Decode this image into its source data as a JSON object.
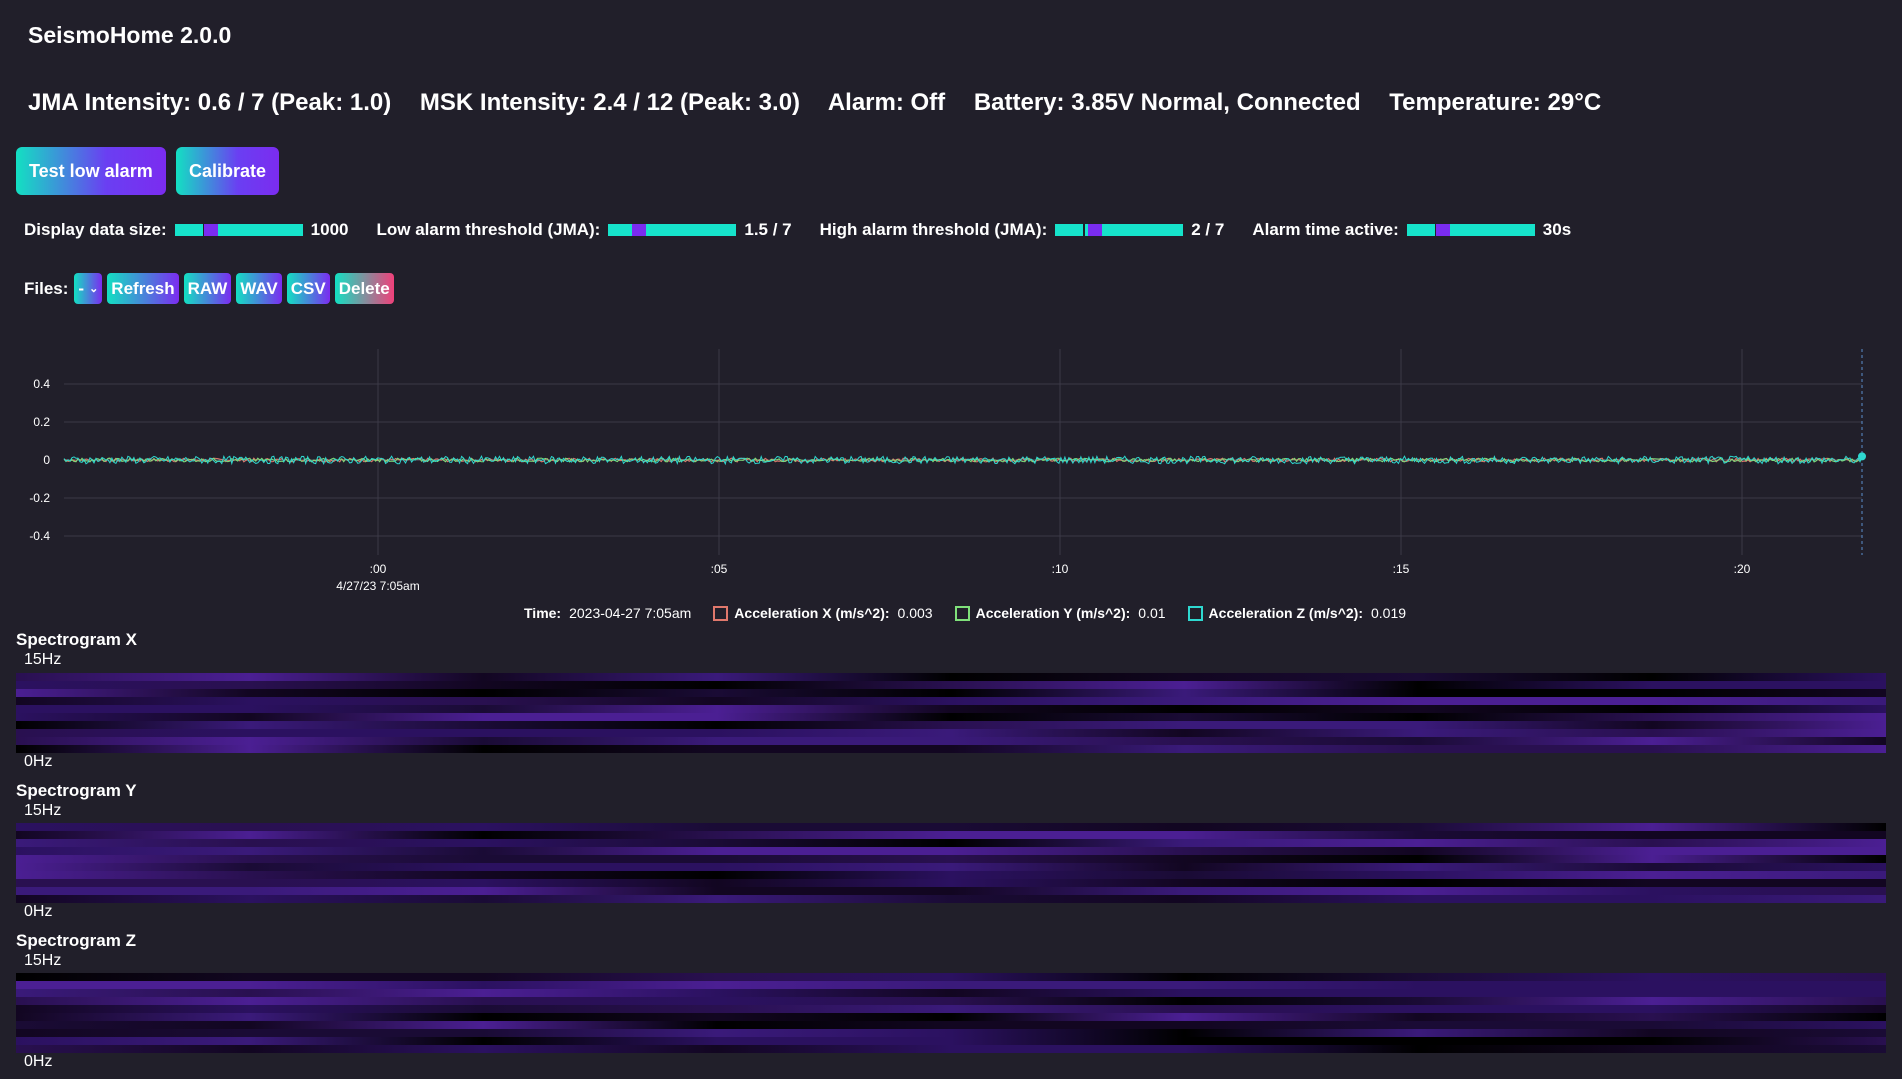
{
  "app": {
    "title": "SeismoHome 2.0.0"
  },
  "status": {
    "jma": "JMA Intensity: 0.6 / 7 (Peak: 1.0)",
    "msk": "MSK Intensity: 2.4 / 12 (Peak: 3.0)",
    "alarm": "Alarm: Off",
    "battery": "Battery: 3.85V Normal, Connected",
    "temperature": "Temperature: 29°C"
  },
  "buttons": {
    "test_low_alarm": "Test low alarm",
    "calibrate": "Calibrate"
  },
  "settings": {
    "display_size": {
      "label": "Display data size:",
      "value": "1000",
      "level": 0.25
    },
    "low_alarm": {
      "label": "Low alarm threshold (JMA):",
      "value": "1.5 / 7",
      "level": 0.21
    },
    "high_alarm": {
      "label": "High alarm threshold (JMA):",
      "value": "2 / 7",
      "level": 0.29
    },
    "alarm_time": {
      "label": "Alarm time active:",
      "value": "30s",
      "level": 0.25
    }
  },
  "files": {
    "label": "Files:",
    "selected": "-",
    "refresh": "Refresh",
    "raw": "RAW",
    "wav": "WAV",
    "csv": "CSV",
    "delete": "Delete"
  },
  "chart_data": {
    "type": "line",
    "yticks": [
      "0.4",
      "0.2",
      "0",
      "-0.2",
      "-0.4"
    ],
    "ylim": [
      -0.5,
      0.5
    ],
    "xticks": [
      ":00",
      ":05",
      ":10",
      ":15",
      ":20"
    ],
    "xdate_label": "4/27/23 7:05am",
    "series": [
      {
        "name": "Acceleration X (m/s^2)",
        "color": "#e0786c",
        "amplitude": 0.01
      },
      {
        "name": "Acceleration Y (m/s^2)",
        "color": "#7fe07a",
        "amplitude": 0.01
      },
      {
        "name": "Acceleration Z (m/s^2)",
        "color": "#2ed8d0",
        "amplitude": 0.02
      }
    ],
    "grid": true
  },
  "legend": {
    "time_label": "Time:",
    "time_value": "2023-04-27 7:05am",
    "x_label": "Acceleration X (m/s^2):",
    "x_value": "0.003",
    "y_label": "Acceleration Y (m/s^2):",
    "y_value": "0.01",
    "z_label": "Acceleration Z (m/s^2):",
    "z_value": "0.019",
    "x_color": "#e0786c",
    "y_color": "#7fe07a",
    "z_color": "#2ed8d0"
  },
  "spectrograms": {
    "x": {
      "title": "Spectrogram X",
      "top": "15Hz",
      "bottom": "0Hz"
    },
    "y": {
      "title": "Spectrogram Y",
      "top": "15Hz",
      "bottom": "0Hz"
    },
    "z": {
      "title": "Spectrogram Z",
      "top": "15Hz",
      "bottom": "0Hz"
    }
  }
}
